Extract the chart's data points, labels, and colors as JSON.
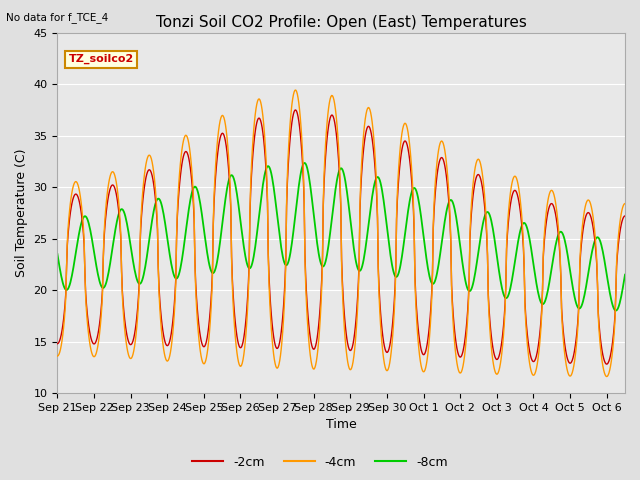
{
  "title": "Tonzi Soil CO2 Profile: Open (East) Temperatures",
  "subtitle": "No data for f_TCE_4",
  "ylabel": "Soil Temperature (C)",
  "xlabel": "Time",
  "legend_label": "TZ_soilco2",
  "ylim": [
    10,
    45
  ],
  "series_labels": [
    "-2cm",
    "-4cm",
    "-8cm"
  ],
  "series_colors": [
    "#cc0000",
    "#ff9900",
    "#00cc00"
  ],
  "x_tick_labels": [
    "Sep 21",
    "Sep 22",
    "Sep 23",
    "Sep 24",
    "Sep 25",
    "Sep 26",
    "Sep 27",
    "Sep 28",
    "Sep 29",
    "Sep 30",
    "Oct 1",
    "Oct 2",
    "Oct 3",
    "Oct 4",
    "Oct 5",
    "Oct 6"
  ],
  "background_color": "#e0e0e0",
  "plot_bg_color": "#e8e8e8",
  "grid_color": "#ffffff",
  "title_fontsize": 11,
  "axis_fontsize": 9,
  "tick_fontsize": 8,
  "figsize": [
    6.4,
    4.8
  ],
  "dpi": 100
}
